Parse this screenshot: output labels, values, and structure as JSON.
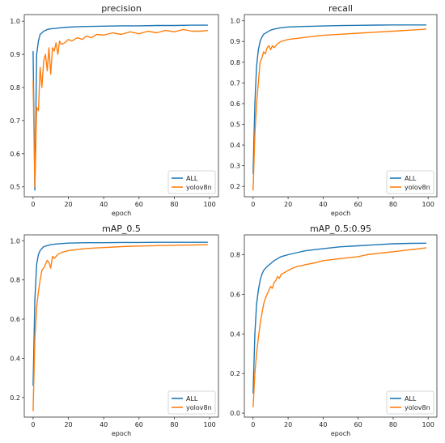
{
  "colors": {
    "all": "#1f77b4",
    "yolov8n": "#ff7f0e"
  },
  "chart_data": [
    {
      "type": "line",
      "title": "precision",
      "xlabel": "epoch",
      "ylabel": "",
      "xlim": [
        -5,
        105
      ],
      "ylim": [
        0.47,
        1.02
      ],
      "xticks": [
        0,
        20,
        40,
        60,
        80,
        100
      ],
      "yticks": [
        0.5,
        0.6,
        0.7,
        0.8,
        0.9,
        1.0
      ],
      "grid": false,
      "legend": "lower right",
      "series": [
        {
          "name": "ALL",
          "x": [
            0,
            1,
            2,
            3,
            4,
            5,
            6,
            7,
            8,
            10,
            12,
            15,
            20,
            25,
            30,
            40,
            50,
            60,
            70,
            80,
            90,
            99
          ],
          "y": [
            0.91,
            0.49,
            0.9,
            0.94,
            0.96,
            0.965,
            0.97,
            0.972,
            0.975,
            0.977,
            0.978,
            0.98,
            0.982,
            0.983,
            0.984,
            0.985,
            0.986,
            0.986,
            0.987,
            0.987,
            0.988,
            0.988
          ]
        },
        {
          "name": "yolov8n",
          "x": [
            0,
            1,
            2,
            3,
            4,
            5,
            6,
            7,
            8,
            9,
            10,
            11,
            12,
            13,
            14,
            15,
            16,
            18,
            20,
            22,
            25,
            28,
            30,
            33,
            36,
            40,
            45,
            50,
            55,
            60,
            65,
            70,
            75,
            80,
            85,
            90,
            95,
            99
          ],
          "y": [
            0.82,
            0.5,
            0.74,
            0.73,
            0.86,
            0.8,
            0.88,
            0.9,
            0.85,
            0.92,
            0.84,
            0.92,
            0.91,
            0.935,
            0.9,
            0.94,
            0.93,
            0.935,
            0.945,
            0.94,
            0.95,
            0.945,
            0.955,
            0.95,
            0.96,
            0.958,
            0.965,
            0.96,
            0.968,
            0.962,
            0.97,
            0.965,
            0.972,
            0.968,
            0.975,
            0.97,
            0.97,
            0.972
          ]
        }
      ]
    },
    {
      "type": "line",
      "title": "recall",
      "xlabel": "epoch",
      "ylabel": "",
      "xlim": [
        -5,
        105
      ],
      "ylim": [
        0.15,
        1.03
      ],
      "xticks": [
        0,
        20,
        40,
        60,
        80,
        100
      ],
      "yticks": [
        0.2,
        0.3,
        0.4,
        0.5,
        0.6,
        0.7,
        0.8,
        0.9,
        1.0
      ],
      "grid": false,
      "legend": "lower right",
      "series": [
        {
          "name": "ALL",
          "x": [
            0,
            1,
            2,
            3,
            4,
            5,
            6,
            8,
            10,
            12,
            15,
            20,
            30,
            40,
            50,
            60,
            70,
            80,
            90,
            99
          ],
          "y": [
            0.26,
            0.6,
            0.78,
            0.86,
            0.9,
            0.92,
            0.935,
            0.945,
            0.955,
            0.96,
            0.965,
            0.97,
            0.973,
            0.975,
            0.977,
            0.978,
            0.979,
            0.98,
            0.98,
            0.98
          ]
        },
        {
          "name": "yolov8n",
          "x": [
            0,
            1,
            2,
            3,
            4,
            5,
            6,
            7,
            8,
            9,
            10,
            11,
            12,
            14,
            16,
            18,
            20,
            25,
            30,
            35,
            40,
            50,
            60,
            70,
            80,
            90,
            99
          ],
          "y": [
            0.18,
            0.45,
            0.6,
            0.7,
            0.8,
            0.82,
            0.85,
            0.84,
            0.87,
            0.88,
            0.86,
            0.88,
            0.87,
            0.89,
            0.9,
            0.905,
            0.91,
            0.915,
            0.92,
            0.925,
            0.93,
            0.935,
            0.94,
            0.945,
            0.95,
            0.955,
            0.96
          ]
        }
      ]
    },
    {
      "type": "line",
      "title": "mAP_0.5",
      "xlabel": "epoch",
      "ylabel": "",
      "xlim": [
        -5,
        105
      ],
      "ylim": [
        0.1,
        1.03
      ],
      "xticks": [
        0,
        20,
        40,
        60,
        80,
        100
      ],
      "yticks": [
        0.2,
        0.4,
        0.6,
        0.8,
        1.0
      ],
      "grid": false,
      "legend": "lower right",
      "series": [
        {
          "name": "ALL",
          "x": [
            0,
            1,
            2,
            3,
            4,
            5,
            6,
            8,
            10,
            12,
            15,
            20,
            30,
            40,
            50,
            60,
            70,
            80,
            90,
            99
          ],
          "y": [
            0.26,
            0.7,
            0.88,
            0.93,
            0.95,
            0.96,
            0.97,
            0.975,
            0.98,
            0.982,
            0.985,
            0.988,
            0.99,
            0.99,
            0.991,
            0.991,
            0.992,
            0.992,
            0.992,
            0.992
          ]
        },
        {
          "name": "yolov8n",
          "x": [
            0,
            1,
            2,
            3,
            4,
            5,
            6,
            7,
            8,
            9,
            10,
            11,
            12,
            14,
            16,
            18,
            20,
            25,
            30,
            35,
            40,
            50,
            60,
            70,
            80,
            90,
            99
          ],
          "y": [
            0.13,
            0.5,
            0.66,
            0.74,
            0.8,
            0.85,
            0.86,
            0.88,
            0.9,
            0.89,
            0.86,
            0.92,
            0.91,
            0.93,
            0.94,
            0.945,
            0.95,
            0.955,
            0.96,
            0.963,
            0.965,
            0.97,
            0.973,
            0.975,
            0.977,
            0.978,
            0.98
          ]
        }
      ]
    },
    {
      "type": "line",
      "title": "mAP_0.5:0.95",
      "xlabel": "epoch",
      "ylabel": "",
      "xlim": [
        -5,
        105
      ],
      "ylim": [
        -0.02,
        0.9
      ],
      "xticks": [
        0,
        20,
        40,
        60,
        80,
        100
      ],
      "yticks": [
        0.0,
        0.2,
        0.4,
        0.6,
        0.8
      ],
      "grid": false,
      "legend": "lower right",
      "series": [
        {
          "name": "ALL",
          "x": [
            0,
            1,
            2,
            3,
            4,
            5,
            6,
            8,
            10,
            12,
            14,
            16,
            18,
            20,
            25,
            30,
            40,
            50,
            60,
            70,
            80,
            90,
            99
          ],
          "y": [
            0.1,
            0.4,
            0.55,
            0.62,
            0.67,
            0.7,
            0.72,
            0.74,
            0.755,
            0.77,
            0.78,
            0.79,
            0.795,
            0.8,
            0.81,
            0.82,
            0.83,
            0.84,
            0.845,
            0.85,
            0.855,
            0.857,
            0.858
          ]
        },
        {
          "name": "yolov8n",
          "x": [
            0,
            1,
            2,
            3,
            4,
            5,
            6,
            7,
            8,
            9,
            10,
            11,
            12,
            13,
            14,
            15,
            16,
            18,
            20,
            22,
            25,
            28,
            30,
            33,
            36,
            40,
            45,
            50,
            55,
            60,
            65,
            70,
            75,
            80,
            85,
            90,
            95,
            99
          ],
          "y": [
            0.03,
            0.2,
            0.3,
            0.38,
            0.45,
            0.5,
            0.55,
            0.58,
            0.6,
            0.62,
            0.64,
            0.63,
            0.66,
            0.67,
            0.69,
            0.68,
            0.7,
            0.71,
            0.72,
            0.73,
            0.74,
            0.745,
            0.75,
            0.755,
            0.76,
            0.77,
            0.775,
            0.78,
            0.785,
            0.79,
            0.8,
            0.805,
            0.81,
            0.815,
            0.82,
            0.825,
            0.83,
            0.835
          ]
        }
      ]
    }
  ]
}
